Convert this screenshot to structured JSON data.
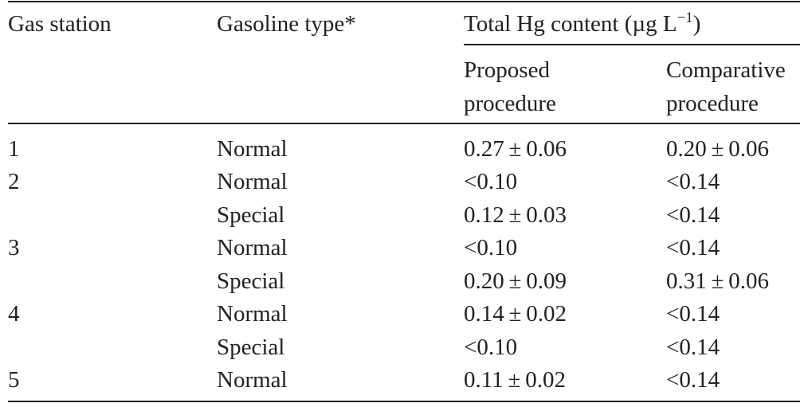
{
  "headers": {
    "gas_station": "Gas station",
    "gasoline_type": "Gasoline type*",
    "total_hg": {
      "prefix": "Total Hg content (µg L",
      "exponent": "−1",
      "suffix": ")"
    },
    "proposed_line1": "Proposed",
    "proposed_line2": "procedure",
    "comparative_line1": "Comparative",
    "comparative_line2": "procedure"
  },
  "rows": [
    {
      "station": "1",
      "type": "Normal",
      "proposed": "0.27 ± 0.06",
      "comparative": "0.20 ± 0.06"
    },
    {
      "station": "2",
      "type": "Normal",
      "proposed": "<0.10",
      "comparative": "<0.14"
    },
    {
      "station": "",
      "type": "Special",
      "proposed": "0.12 ± 0.03",
      "comparative": "<0.14"
    },
    {
      "station": "3",
      "type": "Normal",
      "proposed": "<0.10",
      "comparative": "<0.14"
    },
    {
      "station": "",
      "type": "Special",
      "proposed": "0.20 ± 0.09",
      "comparative": "0.31 ± 0.06"
    },
    {
      "station": "4",
      "type": "Normal",
      "proposed": "0.14 ± 0.02",
      "comparative": "<0.14"
    },
    {
      "station": "",
      "type": "Special",
      "proposed": "<0.10",
      "comparative": "<0.14"
    },
    {
      "station": "5",
      "type": "Normal",
      "proposed": "0.11 ± 0.02",
      "comparative": "<0.14"
    }
  ]
}
